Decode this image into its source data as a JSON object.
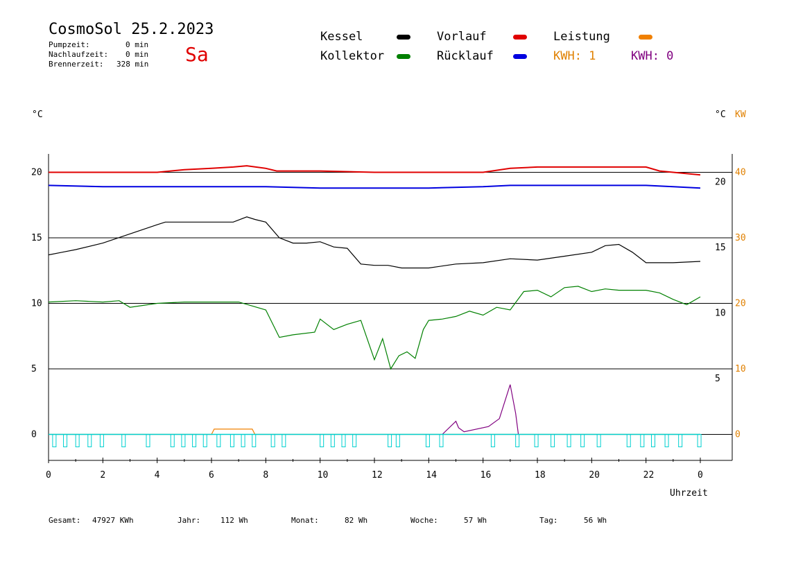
{
  "header": {
    "title": "CosmoSol 25.2.2023",
    "day": "Sa",
    "pump_label": "Pumpzeit:",
    "pump_value": "0 min",
    "nachlauf_label": "Nachlaufzeit:",
    "nachlauf_value": "0 min",
    "brenner_label": "Brennerzeit:",
    "brenner_value": "328 min"
  },
  "legend": {
    "kessel": "Kessel",
    "kollektor": "Kollektor",
    "vorlauf": "Vorlauf",
    "ruecklauf": "Rücklauf",
    "leistung": "Leistung",
    "kwh1": "KWH: 1",
    "kwh0": "KWH: 0"
  },
  "colors": {
    "kessel": "#000000",
    "kollektor": "#008000",
    "vorlauf": "#e00000",
    "ruecklauf": "#0000e0",
    "leistung": "#f08000",
    "kwh1": "#e08000",
    "kwh0": "#800080",
    "pump": "#00d0d0"
  },
  "axes": {
    "left_unit": "°C",
    "right_unit_c": "°C",
    "right_unit_kw": "KW",
    "xlabel": "Uhrzeit",
    "left_ticks": [
      "20",
      "15",
      "10",
      "5",
      "0"
    ],
    "inner_right_ticks": [
      "20",
      "15",
      "10",
      "5"
    ],
    "kw_ticks": [
      "40",
      "30",
      "20",
      "10",
      "0"
    ],
    "x_ticks": [
      "0",
      "2",
      "4",
      "6",
      "8",
      "10",
      "12",
      "14",
      "16",
      "18",
      "20",
      "22",
      "0"
    ]
  },
  "footer": {
    "gesamt_label": "Gesamt:",
    "gesamt_value": "47927 KWh",
    "jahr_label": "Jahr:",
    "jahr_value": "112 Wh",
    "monat_label": "Monat:",
    "monat_value": "82 Wh",
    "woche_label": "Woche:",
    "woche_value": "57 Wh",
    "tag_label": "Tag:",
    "tag_value": "56 Wh"
  },
  "chart_data": {
    "type": "line",
    "xlabel": "Uhrzeit",
    "ylabel": "°C",
    "xlim": [
      0,
      24
    ],
    "ylim": [
      -1,
      22
    ],
    "legend_position": "top",
    "series": [
      {
        "name": "Vorlauf",
        "x": [
          0,
          1,
          2,
          3,
          4,
          5,
          6,
          6.8,
          7.3,
          8,
          8.4,
          10,
          12,
          14,
          16,
          17,
          18,
          20,
          22,
          22.5,
          23,
          24
        ],
        "y": [
          20.0,
          20.0,
          20.0,
          20.0,
          20.0,
          20.2,
          20.3,
          20.4,
          20.5,
          20.3,
          20.1,
          20.1,
          20.0,
          20.0,
          20.0,
          20.3,
          20.4,
          20.4,
          20.4,
          20.1,
          20.0,
          19.8
        ]
      },
      {
        "name": "Rücklauf",
        "x": [
          0,
          2,
          4,
          6,
          8,
          10,
          12,
          14,
          16,
          17,
          18,
          20,
          22,
          23,
          24
        ],
        "y": [
          19.0,
          18.9,
          18.9,
          18.9,
          18.9,
          18.8,
          18.8,
          18.8,
          18.9,
          19.0,
          19.0,
          19.0,
          19.0,
          18.9,
          18.8
        ]
      },
      {
        "name": "Kessel",
        "x": [
          0,
          0.5,
          1,
          2,
          3,
          4,
          4.3,
          5,
          6,
          6.8,
          7.3,
          7.6,
          8,
          8.5,
          9,
          9.5,
          10,
          10.5,
          11,
          11.5,
          12,
          12.5,
          13,
          14,
          15,
          16,
          17,
          18,
          19,
          20,
          20.5,
          21,
          21.5,
          22,
          23,
          24
        ],
        "y": [
          13.7,
          13.9,
          14.1,
          14.6,
          15.3,
          16.0,
          16.2,
          16.2,
          16.2,
          16.2,
          16.6,
          16.4,
          16.2,
          15.0,
          14.6,
          14.6,
          14.7,
          14.3,
          14.2,
          13.0,
          12.9,
          12.9,
          12.7,
          12.7,
          13.0,
          13.1,
          13.4,
          13.3,
          13.6,
          13.9,
          14.4,
          14.5,
          13.9,
          13.1,
          13.1,
          13.2
        ]
      },
      {
        "name": "Kollektor",
        "x": [
          0,
          1,
          2,
          2.6,
          3,
          4,
          5,
          6,
          7,
          8,
          8.5,
          9,
          9.8,
          10,
          10.5,
          11,
          11.5,
          12,
          12.3,
          12.6,
          12.9,
          13.2,
          13.5,
          13.8,
          14,
          14.5,
          15,
          15.5,
          16,
          16.5,
          17,
          17.5,
          18,
          18.5,
          19,
          19.5,
          20,
          20.5,
          21,
          21.5,
          22,
          22.5,
          23,
          23.5,
          24
        ],
        "y": [
          10.1,
          10.2,
          10.1,
          10.2,
          9.7,
          10.0,
          10.1,
          10.1,
          10.1,
          9.5,
          7.4,
          7.6,
          7.8,
          8.8,
          8.0,
          8.4,
          8.7,
          5.7,
          7.3,
          5.0,
          6.0,
          6.3,
          5.8,
          8.0,
          8.7,
          8.8,
          9.0,
          9.4,
          9.1,
          9.7,
          9.5,
          10.9,
          11.0,
          10.5,
          11.2,
          11.3,
          10.9,
          11.1,
          11.0,
          11.0,
          11.0,
          10.8,
          10.3,
          9.9,
          10.5
        ]
      },
      {
        "name": "Leistung",
        "x": [
          0,
          6,
          6.1,
          7.5,
          7.6,
          24
        ],
        "y": [
          0,
          0,
          0.4,
          0.4,
          0,
          0
        ]
      },
      {
        "name": "KWH: 0",
        "x": [
          14.5,
          15,
          15.1,
          15.3,
          16.2,
          16.6,
          17.0,
          17.2,
          17.3
        ],
        "y": [
          0,
          1.0,
          0.5,
          0.2,
          0.6,
          1.2,
          3.8,
          1.6,
          0
        ]
      }
    ]
  }
}
